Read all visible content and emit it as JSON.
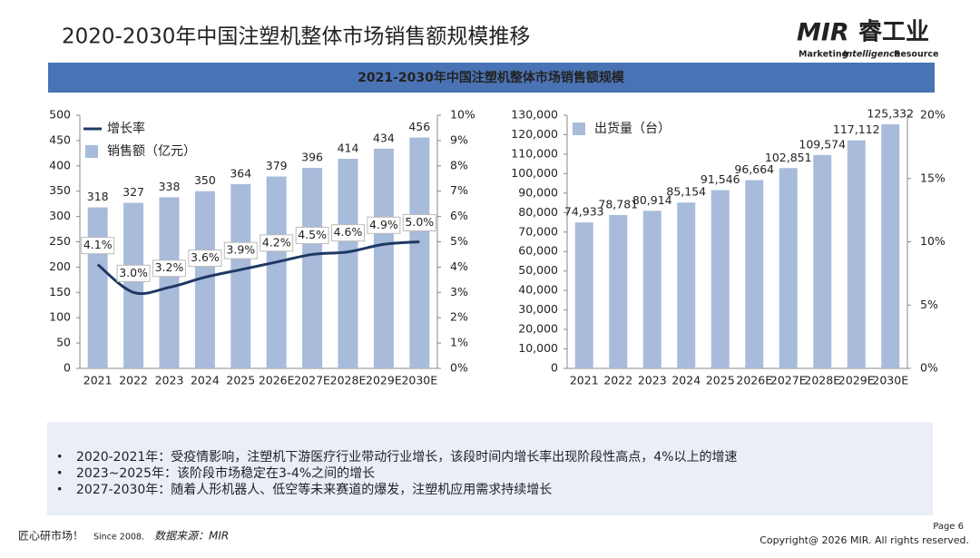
{
  "header": {
    "title": "2020-2030年中国注塑机整体市场销售额规模推移",
    "logo_mark": "MIR",
    "logo_cn": "睿工业",
    "logo_sub": [
      "Marketing",
      "Intelligence",
      "Resource"
    ]
  },
  "banner": "2021-2030年中国注塑机整体市场销售额规模",
  "chart_data": [
    {
      "type": "bar",
      "categories": [
        "2021",
        "2022",
        "2023",
        "2024",
        "2025",
        "2026E",
        "2027E",
        "2028E",
        "2029E",
        "2030E"
      ],
      "series": [
        {
          "name": "增长率",
          "type": "line",
          "axis": "y2",
          "color": "#1f3864",
          "values": [
            4.1,
            3.0,
            3.2,
            3.6,
            3.9,
            4.2,
            4.5,
            4.6,
            4.9,
            5.0
          ],
          "value_labels": [
            "4.1%",
            "3.0%",
            "3.2%",
            "3.6%",
            "3.9%",
            "4.2%",
            "4.5%",
            "4.6%",
            "4.9%",
            "5.0%"
          ]
        },
        {
          "name": "销售额（亿元）",
          "color": "#a8bbdb",
          "values": [
            318,
            327,
            338,
            350,
            364,
            379,
            396,
            414,
            434,
            456
          ]
        }
      ],
      "ylim": [
        0,
        500
      ],
      "yticks": [
        0,
        50,
        100,
        150,
        200,
        250,
        300,
        350,
        400,
        450,
        500
      ],
      "y2lim": [
        0,
        10
      ],
      "y2ticks": [
        {
          "value": 0,
          "label": "0%"
        },
        {
          "value": 1,
          "label": "1%"
        },
        {
          "value": 2,
          "label": "2%"
        },
        {
          "value": 3,
          "label": "3%"
        },
        {
          "value": 4,
          "label": "4%"
        },
        {
          "value": 5,
          "label": "5%"
        },
        {
          "value": 6,
          "label": "6%"
        },
        {
          "value": 7,
          "label": "7%"
        },
        {
          "value": 8,
          "label": "8%"
        },
        {
          "value": 9,
          "label": "9%"
        },
        {
          "value": 10,
          "label": "10%"
        }
      ]
    },
    {
      "type": "bar",
      "categories": [
        "2021",
        "2022",
        "2023",
        "2024",
        "2025",
        "2026E",
        "2027E",
        "2028E",
        "2029E",
        "2030E"
      ],
      "series": [
        {
          "name": "出货量（台）",
          "color": "#a8bbdb",
          "values": [
            74933,
            78781,
            80914,
            85154,
            91546,
            96664,
            102851,
            109574,
            117112,
            125332
          ],
          "value_labels": [
            "74,933",
            "78,781",
            "80,914",
            "85,154",
            "91,546",
            "96,664",
            "102,851",
            "109,574",
            "117,112",
            "125,332"
          ]
        }
      ],
      "ylim": [
        0,
        130000
      ],
      "yticks": [
        0,
        {
          "value": 10000,
          "label": "10,000"
        },
        {
          "value": 20000,
          "label": "20,000"
        },
        {
          "value": 30000,
          "label": "30,000"
        },
        {
          "value": 40000,
          "label": "40,000"
        },
        {
          "value": 50000,
          "label": "50,000"
        },
        {
          "value": 60000,
          "label": "60,000"
        },
        {
          "value": 70000,
          "label": "70,000"
        },
        {
          "value": 80000,
          "label": "80,000"
        },
        {
          "value": 90000,
          "label": "90,000"
        },
        {
          "value": 100000,
          "label": "100,000"
        },
        {
          "value": 110000,
          "label": "110,000"
        },
        {
          "value": 120000,
          "label": "120,000"
        },
        {
          "value": 130000,
          "label": "130,000"
        }
      ],
      "y2lim": [
        0,
        20
      ],
      "y2ticks": [
        {
          "value": 0,
          "label": "0%"
        },
        {
          "value": 5,
          "label": "5%"
        },
        {
          "value": 10,
          "label": "10%"
        },
        {
          "value": 15,
          "label": "15%"
        },
        {
          "value": 20,
          "label": "20%"
        }
      ]
    }
  ],
  "bullets": [
    "2020-2021年：受疫情影响，注塑机下游医疗行业带动行业增长，该段时间内增长率出现阶段性高点，4%以上的增速",
    "2023~2025年：该阶段市场稳定在3-4%之间的增长",
    "2027-2030年：随着人形机器人、低空等未来赛道的爆发，注塑机应用需求持续增长"
  ],
  "footer": {
    "brand": "匠心研市场！",
    "since": "Since 2008.",
    "source": "数据来源：MIR",
    "page": "Page 6",
    "copyright": "Copyright@ 2026 MIR. All rights reserved."
  }
}
